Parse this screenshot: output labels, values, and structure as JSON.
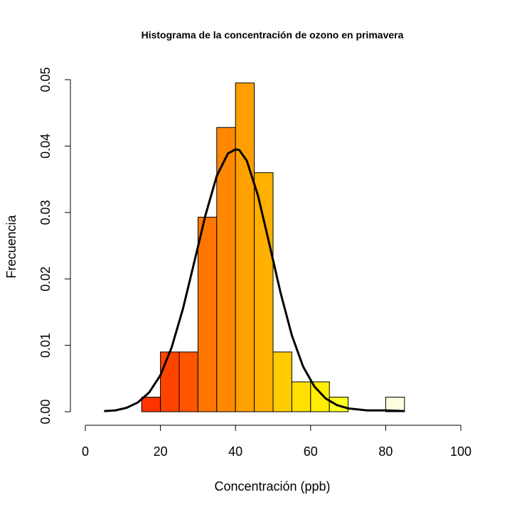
{
  "chart_data": {
    "type": "bar",
    "title": "Histograma de la concentración de ozono en primavera",
    "xlabel": "Concentración (ppb)",
    "ylabel": "Frecuencia",
    "xlim": [
      0,
      100
    ],
    "ylim": [
      0,
      0.05
    ],
    "x_ticks": [
      0,
      20,
      40,
      60,
      80,
      100
    ],
    "x_tick_labels": [
      "0",
      "20",
      "40",
      "60",
      "80",
      "100"
    ],
    "y_ticks": [
      0,
      0.01,
      0.02,
      0.03,
      0.04,
      0.05
    ],
    "y_tick_labels": [
      "0.00",
      "0.01",
      "0.02",
      "0.03",
      "0.04",
      "0.05"
    ],
    "grid": false,
    "bins": [
      {
        "start": 15,
        "end": 20,
        "value": 0.0022,
        "color": "#FF3300"
      },
      {
        "start": 20,
        "end": 25,
        "value": 0.009,
        "color": "#FF4400"
      },
      {
        "start": 25,
        "end": 30,
        "value": 0.009,
        "color": "#FF5500"
      },
      {
        "start": 30,
        "end": 35,
        "value": 0.0293,
        "color": "#FF7700"
      },
      {
        "start": 35,
        "end": 40,
        "value": 0.0428,
        "color": "#FF8800"
      },
      {
        "start": 40,
        "end": 45,
        "value": 0.0495,
        "color": "#FFA000"
      },
      {
        "start": 45,
        "end": 50,
        "value": 0.036,
        "color": "#FFB000"
      },
      {
        "start": 50,
        "end": 55,
        "value": 0.009,
        "color": "#FFCC00"
      },
      {
        "start": 55,
        "end": 60,
        "value": 0.0045,
        "color": "#FFE000"
      },
      {
        "start": 60,
        "end": 65,
        "value": 0.0045,
        "color": "#FFEE00"
      },
      {
        "start": 65,
        "end": 70,
        "value": 0.0022,
        "color": "#FFFF20"
      },
      {
        "start": 70,
        "end": 75,
        "value": 0,
        "color": "#FFFF60"
      },
      {
        "start": 75,
        "end": 80,
        "value": 0,
        "color": "#FFFF90"
      },
      {
        "start": 80,
        "end": 85,
        "value": 0.0022,
        "color": "#FFFFE0"
      }
    ],
    "density_curve": {
      "x": [
        5,
        8,
        11,
        14,
        17,
        20,
        23,
        26,
        29,
        32,
        35,
        38,
        40,
        41,
        43,
        46,
        49,
        52,
        55,
        58,
        61,
        64,
        67,
        70,
        75,
        80,
        85
      ],
      "y": [
        0.0001,
        0.0002,
        0.0006,
        0.0014,
        0.0029,
        0.0055,
        0.0097,
        0.0155,
        0.0225,
        0.0296,
        0.0355,
        0.0389,
        0.0395,
        0.0394,
        0.0378,
        0.0325,
        0.0253,
        0.0179,
        0.0115,
        0.0068,
        0.0038,
        0.002,
        0.001,
        0.0005,
        0.0002,
        0.0002,
        0.0001
      ]
    }
  }
}
